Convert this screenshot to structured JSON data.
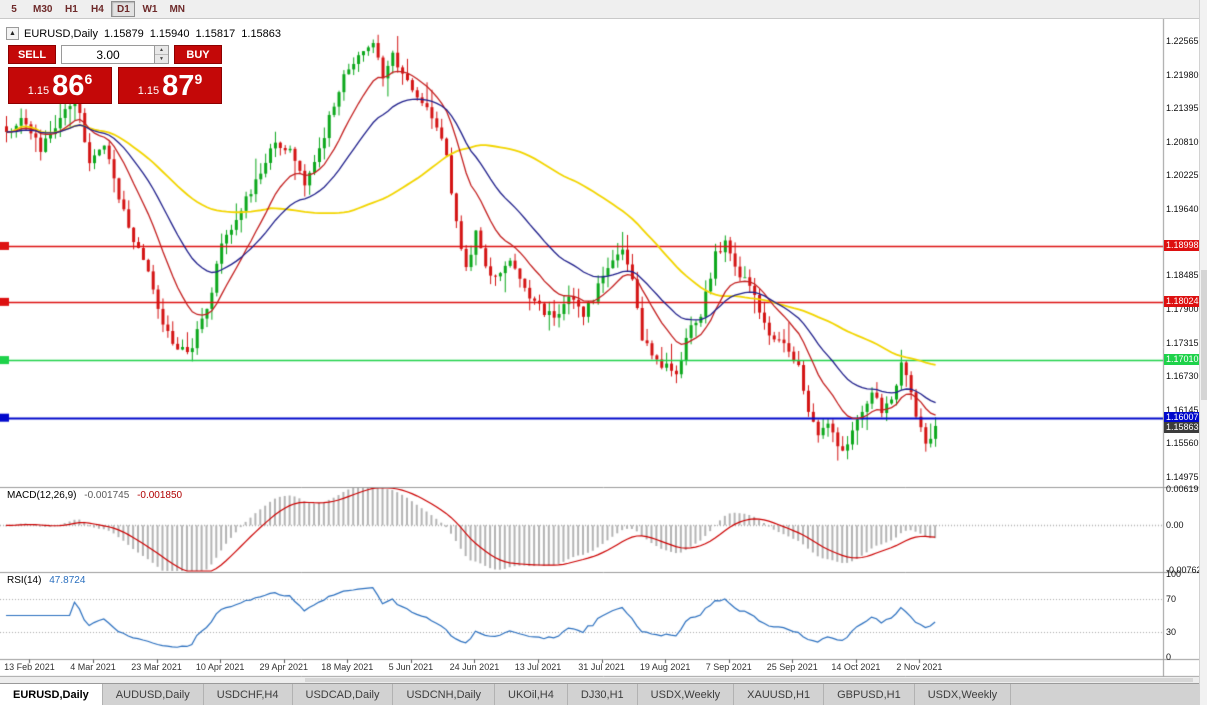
{
  "toolbar": {
    "timeframes": [
      "5",
      "M30",
      "H1",
      "H4",
      "D1",
      "W1",
      "MN"
    ],
    "active": "D1"
  },
  "chart_header": {
    "collapse_glyph": "▲",
    "symbol": "EURUSD,Daily",
    "open": "1.15879",
    "high": "1.15940",
    "low": "1.15817",
    "close": "1.15863"
  },
  "trade_panel": {
    "sell_label": "SELL",
    "buy_label": "BUY",
    "volume": "3.00",
    "spinner_up": "▲",
    "spinner_down": "▼",
    "bid": {
      "small": "1.15",
      "big": "86",
      "sup": "6"
    },
    "ask": {
      "small": "1.15",
      "big": "87",
      "sup": "9"
    }
  },
  "indicators": {
    "macd": {
      "name": "MACD(12,26,9)",
      "value1": "-0.001745",
      "value2": "-0.001850"
    },
    "rsi": {
      "name": "RSI(14)",
      "value": "47.8724"
    }
  },
  "tabs": [
    {
      "label": "EURUSD,Daily",
      "active": true
    },
    {
      "label": "AUDUSD,Daily",
      "active": false
    },
    {
      "label": "USDCHF,H4",
      "active": false
    },
    {
      "label": "USDCAD,Daily",
      "active": false
    },
    {
      "label": "USDCNH,Daily",
      "active": false
    },
    {
      "label": "UKOil,H4",
      "active": false
    },
    {
      "label": "DJ30,H1",
      "active": false
    },
    {
      "label": "USDX,Weekly",
      "active": false
    },
    {
      "label": "XAUUSD,H1",
      "active": false
    },
    {
      "label": "GBPUSD,H1",
      "active": false
    },
    {
      "label": "USDX,Weekly",
      "active": false
    }
  ],
  "chart_data": {
    "type": "candlestick",
    "symbol": "EURUSD",
    "timeframe": "Daily",
    "price_range": {
      "min": 1.148,
      "max": 1.2295
    },
    "y_axis": {
      "labels": [
        {
          "text": "1.22565",
          "value": 1.22565
        },
        {
          "text": "1.21980",
          "value": 1.2198
        },
        {
          "text": "1.21395",
          "value": 1.21395
        },
        {
          "text": "1.20810",
          "value": 1.2081
        },
        {
          "text": "1.20225",
          "value": 1.20225
        },
        {
          "text": "1.19640",
          "value": 1.1964
        },
        {
          "text": "1.18485",
          "value": 1.18485
        },
        {
          "text": "1.17900",
          "value": 1.179
        },
        {
          "text": "1.17315",
          "value": 1.17315
        },
        {
          "text": "1.16730",
          "value": 1.1673
        },
        {
          "text": "1.16145",
          "value": 1.16145
        },
        {
          "text": "1.15560",
          "value": 1.1556
        },
        {
          "text": "1.14975",
          "value": 1.14975
        }
      ]
    },
    "x_axis": {
      "tick_labels": [
        "13 Feb 2021",
        "4 Mar 2021",
        "23 Mar 2021",
        "10 Apr 2021",
        "29 Apr 2021",
        "18 May 2021",
        "5 Jun 2021",
        "24 Jun 2021",
        "13 Jul 2021",
        "31 Jul 2021",
        "19 Aug 2021",
        "7 Sep 2021",
        "25 Sep 2021",
        "14 Oct 2021",
        "2 Nov 2021"
      ],
      "first_tick_candle": 5,
      "candles_per_tick": 13
    },
    "key_levels": [
      {
        "label": "1.18998",
        "value": 1.18998,
        "color": "#dd1010",
        "width": 1.4
      },
      {
        "label": "1.18024",
        "value": 1.18024,
        "color": "#dd1010",
        "width": 1.4
      },
      {
        "label": "1.17010",
        "value": 1.1701,
        "color": "#1ed24a",
        "width": 1.6
      },
      {
        "label": "1.16007",
        "value": 1.16007,
        "color": "#0008cc",
        "width": 2
      }
    ],
    "current_price": {
      "label": "1.15863",
      "value": 1.15863
    },
    "candles": {
      "count": 191,
      "up_color": "#0ca81c",
      "down_color": "#d41414",
      "waypoints": [
        [
          0,
          1.209
        ],
        [
          3,
          1.213
        ],
        [
          7,
          1.207
        ],
        [
          11,
          1.2125
        ],
        [
          14,
          1.216
        ],
        [
          17,
          1.205
        ],
        [
          20,
          1.208
        ],
        [
          23,
          1.198
        ],
        [
          26,
          1.1915
        ],
        [
          29,
          1.1855
        ],
        [
          32,
          1.176
        ],
        [
          35,
          1.1718
        ],
        [
          38,
          1.1725
        ],
        [
          41,
          1.179
        ],
        [
          44,
          1.19
        ],
        [
          48,
          1.1965
        ],
        [
          52,
          1.203
        ],
        [
          55,
          1.208
        ],
        [
          58,
          1.206
        ],
        [
          61,
          1.201
        ],
        [
          64,
          1.207
        ],
        [
          67,
          1.215
        ],
        [
          70,
          1.2215
        ],
        [
          73,
          1.223
        ],
        [
          75,
          1.2255
        ],
        [
          77,
          1.22
        ],
        [
          79,
          1.223
        ],
        [
          82,
          1.218
        ],
        [
          85,
          1.215
        ],
        [
          88,
          1.2115
        ],
        [
          90,
          1.206
        ],
        [
          92,
          1.1935
        ],
        [
          94,
          1.186
        ],
        [
          96,
          1.1925
        ],
        [
          98,
          1.1865
        ],
        [
          100,
          1.185
        ],
        [
          103,
          1.188
        ],
        [
          106,
          1.182
        ],
        [
          109,
          1.179
        ],
        [
          112,
          1.1772
        ],
        [
          115,
          1.1808
        ],
        [
          118,
          1.1775
        ],
        [
          121,
          1.183
        ],
        [
          124,
          1.1868
        ],
        [
          126,
          1.1892
        ],
        [
          128,
          1.1835
        ],
        [
          130,
          1.173
        ],
        [
          133,
          1.1705
        ],
        [
          136,
          1.1678
        ],
        [
          137,
          1.1668
        ],
        [
          139,
          1.1748
        ],
        [
          142,
          1.1782
        ],
        [
          145,
          1.1885
        ],
        [
          147,
          1.1902
        ],
        [
          150,
          1.1852
        ],
        [
          153,
          1.1808
        ],
        [
          156,
          1.1742
        ],
        [
          159,
          1.1728
        ],
        [
          162,
          1.1692
        ],
        [
          164,
          1.1602
        ],
        [
          166,
          1.1568
        ],
        [
          168,
          1.1592
        ],
        [
          171,
          1.1535
        ],
        [
          173,
          1.1572
        ],
        [
          175,
          1.1612
        ],
        [
          177,
          1.1645
        ],
        [
          179,
          1.1618
        ],
        [
          181,
          1.164
        ],
        [
          183,
          1.1688
        ],
        [
          185,
          1.1645
        ],
        [
          187,
          1.1578
        ],
        [
          188,
          1.1548
        ],
        [
          189,
          1.1562
        ],
        [
          190,
          1.15863
        ]
      ]
    },
    "moving_averages": [
      {
        "type": "SMA",
        "period": 55,
        "color": "#f2d500"
      },
      {
        "type": "EMA",
        "period": 12,
        "color": "#c42020"
      },
      {
        "type": "EMA",
        "period": 26,
        "color": "#20208c"
      }
    ],
    "macd": {
      "fast": 12,
      "slow": 26,
      "signal": 9,
      "histogram_color": "#b4b4b4",
      "signal_color": "#cc0000",
      "range": {
        "min": -0.007621,
        "max": 0.006193
      },
      "axis": [
        {
          "text": "0.006193",
          "value": 0.006193
        },
        {
          "text": "0.00",
          "value": 0
        },
        {
          "text": "-0.007621",
          "value": -0.007621
        }
      ]
    },
    "rsi": {
      "period": 14,
      "color": "#2a6fbf",
      "levels": [
        70,
        30
      ],
      "axis": [
        {
          "text": "100",
          "value": 100
        },
        {
          "text": "70",
          "value": 70
        },
        {
          "text": "30",
          "value": 30
        },
        {
          "text": "0",
          "value": 0
        }
      ]
    }
  }
}
